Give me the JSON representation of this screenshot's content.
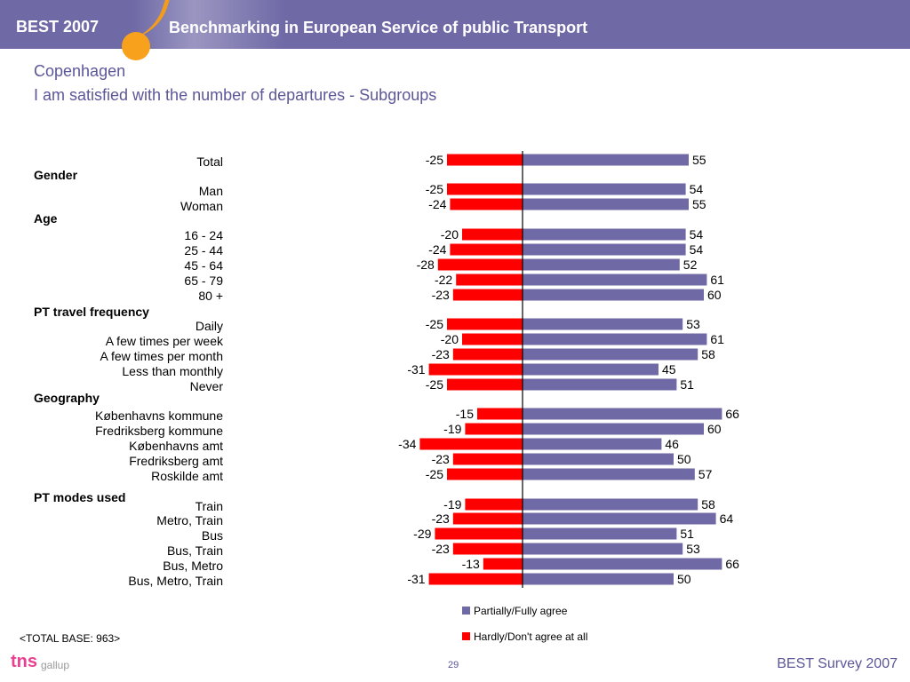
{
  "header": {
    "brand": "BEST 2007",
    "title": "Benchmarking in European Service of public Transport"
  },
  "page": {
    "title": "Copenhagen",
    "subtitle": "I am satisfied with the number of departures - Subgroups"
  },
  "colors": {
    "agree": "#6f6aa6",
    "disagree": "#ff0000",
    "header": "#6f6aa6",
    "accent": "#f7a11c",
    "title_text": "#5b5798"
  },
  "groups": {
    "gender": "Gender",
    "age": "Age",
    "pt_travel_frequency": "PT travel frequency",
    "geography": "Geography",
    "pt_modes_used": "PT modes used"
  },
  "chart_data": {
    "type": "bar",
    "orientation": "horizontal-diverging",
    "categories": [
      "Total",
      "Man",
      "Woman",
      "16 - 24",
      "25 - 44",
      "45 - 64",
      "65 - 79",
      "80 +",
      "Daily",
      "A few times per week",
      "A few times per month",
      "Less than monthly",
      "Never",
      "Københavns kommune",
      "Fredriksberg kommune",
      "Københavns amt",
      "Fredriksberg amt",
      "Roskilde amt",
      "Train",
      "Metro, Train",
      "Bus",
      "Bus, Train",
      "Bus, Metro",
      "Bus, Metro, Train"
    ],
    "series": [
      {
        "name": "Partially/Fully agree",
        "values": [
          55,
          54,
          55,
          54,
          54,
          52,
          61,
          60,
          53,
          61,
          58,
          45,
          51,
          66,
          60,
          46,
          50,
          57,
          58,
          64,
          51,
          53,
          66,
          50
        ]
      },
      {
        "name": "Hardly/Don't agree at all",
        "values": [
          -25,
          -25,
          -24,
          -20,
          -24,
          -28,
          -22,
          -23,
          -25,
          -20,
          -23,
          -31,
          -25,
          -15,
          -19,
          -34,
          -23,
          -25,
          -19,
          -23,
          -29,
          -23,
          -13,
          -31
        ]
      }
    ],
    "legend_position": "bottom-right",
    "grid": false
  },
  "footer": {
    "base_note": "<TOTAL BASE: 963>",
    "logo_tns": "tns",
    "logo_gallup": "gallup",
    "page_number": "29",
    "right_text": "BEST Survey 2007"
  }
}
